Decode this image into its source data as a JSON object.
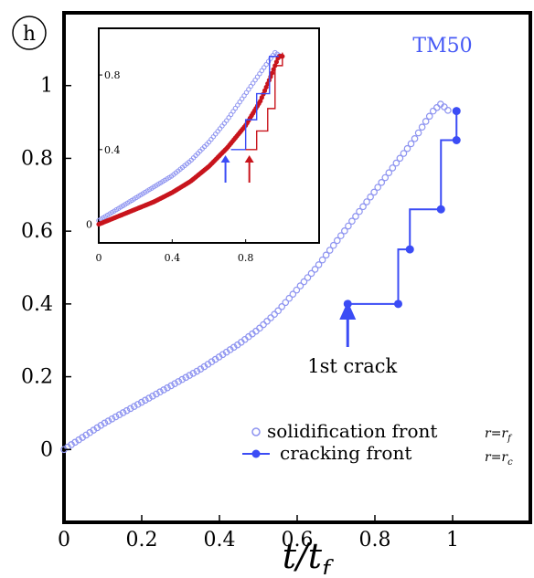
{
  "chart_data": [
    {
      "type": "scatter",
      "panel_label": "h",
      "annotation_title": "TM50",
      "xlabel": "t/t_f",
      "ylabel": "",
      "xlim": [
        0,
        1.2
      ],
      "ylim": [
        -0.2,
        1.2
      ],
      "xticks": [
        0,
        0.2,
        0.4,
        0.6,
        0.8,
        1
      ],
      "xtick_labels": [
        "0",
        "0.2",
        "0.4",
        "0.6",
        "0.8",
        "1"
      ],
      "yticks": [
        0,
        0.2,
        0.4,
        0.6,
        0.8,
        1
      ],
      "ytick_labels": [
        "0",
        "0.2",
        "0.4",
        "0.6",
        "0.8",
        "1"
      ],
      "grid": false,
      "legend_position": "bottom-right",
      "series": [
        {
          "name": "solidification front",
          "legend_math": "r=r_f",
          "color": "#8d93f0",
          "marker": "open-circle",
          "points": [
            [
              0.0,
              0.0
            ],
            [
              0.05,
              0.035
            ],
            [
              0.1,
              0.07
            ],
            [
              0.15,
              0.1
            ],
            [
              0.2,
              0.13
            ],
            [
              0.25,
              0.16
            ],
            [
              0.3,
              0.19
            ],
            [
              0.35,
              0.22
            ],
            [
              0.4,
              0.255
            ],
            [
              0.45,
              0.29
            ],
            [
              0.5,
              0.33
            ],
            [
              0.55,
              0.38
            ],
            [
              0.6,
              0.44
            ],
            [
              0.65,
              0.5
            ],
            [
              0.7,
              0.57
            ],
            [
              0.75,
              0.64
            ],
            [
              0.8,
              0.71
            ],
            [
              0.85,
              0.78
            ],
            [
              0.9,
              0.85
            ],
            [
              0.93,
              0.9
            ],
            [
              0.95,
              0.93
            ],
            [
              0.97,
              0.95
            ],
            [
              0.99,
              0.93
            ]
          ]
        },
        {
          "name": "cracking front",
          "legend_math": "r=r_c",
          "color": "#3b4cf5",
          "marker": "filled-circle-step",
          "points": [
            [
              0.73,
              0.4
            ],
            [
              0.86,
              0.4
            ],
            [
              0.86,
              0.55
            ],
            [
              0.89,
              0.55
            ],
            [
              0.89,
              0.66
            ],
            [
              0.97,
              0.66
            ],
            [
              0.97,
              0.85
            ],
            [
              1.01,
              0.85
            ],
            [
              1.01,
              0.93
            ]
          ]
        }
      ],
      "annotations": [
        {
          "text": "1st crack",
          "x": 0.73,
          "y": 0.3
        }
      ]
    },
    {
      "type": "scatter",
      "role": "inset",
      "xlim": [
        0,
        1.2
      ],
      "ylim": [
        -0.1,
        1.05
      ],
      "xticks": [
        0,
        0.4,
        0.8
      ],
      "xtick_labels": [
        "0",
        "0.4",
        "0.8"
      ],
      "yticks": [
        0,
        0.4,
        0.8
      ],
      "ytick_labels": [
        "0",
        "0.4",
        "0.8"
      ],
      "series": [
        {
          "color": "#8d93f0",
          "marker": "open-circle",
          "points": [
            [
              0.0,
              0.02
            ],
            [
              0.1,
              0.08
            ],
            [
              0.2,
              0.14
            ],
            [
              0.3,
              0.2
            ],
            [
              0.4,
              0.26
            ],
            [
              0.5,
              0.34
            ],
            [
              0.6,
              0.44
            ],
            [
              0.7,
              0.56
            ],
            [
              0.8,
              0.7
            ],
            [
              0.9,
              0.84
            ],
            [
              0.96,
              0.92
            ],
            [
              0.99,
              0.9
            ]
          ]
        },
        {
          "color": "#c8141c",
          "marker": "filled-circle",
          "points": [
            [
              0.0,
              0.0
            ],
            [
              0.1,
              0.04
            ],
            [
              0.2,
              0.08
            ],
            [
              0.3,
              0.12
            ],
            [
              0.4,
              0.17
            ],
            [
              0.5,
              0.23
            ],
            [
              0.6,
              0.31
            ],
            [
              0.7,
              0.41
            ],
            [
              0.8,
              0.53
            ],
            [
              0.88,
              0.66
            ],
            [
              0.94,
              0.8
            ],
            [
              0.98,
              0.9
            ],
            [
              1.0,
              0.9
            ]
          ]
        },
        {
          "color": "#3b4cf5",
          "marker": "step",
          "points": [
            [
              0.72,
              0.4
            ],
            [
              0.8,
              0.4
            ],
            [
              0.8,
              0.56
            ],
            [
              0.86,
              0.56
            ],
            [
              0.86,
              0.7
            ],
            [
              0.93,
              0.7
            ],
            [
              0.93,
              0.9
            ],
            [
              0.98,
              0.9
            ]
          ]
        },
        {
          "color": "#c8141c",
          "marker": "step",
          "points": [
            [
              0.8,
              0.4
            ],
            [
              0.86,
              0.4
            ],
            [
              0.86,
              0.5
            ],
            [
              0.92,
              0.5
            ],
            [
              0.92,
              0.62
            ],
            [
              0.96,
              0.62
            ],
            [
              0.96,
              0.85
            ],
            [
              1.0,
              0.85
            ],
            [
              1.0,
              0.92
            ]
          ]
        }
      ],
      "arrows": [
        {
          "x": 0.69,
          "color": "#3b4cf5"
        },
        {
          "x": 0.82,
          "color": "#c8141c"
        }
      ]
    }
  ]
}
